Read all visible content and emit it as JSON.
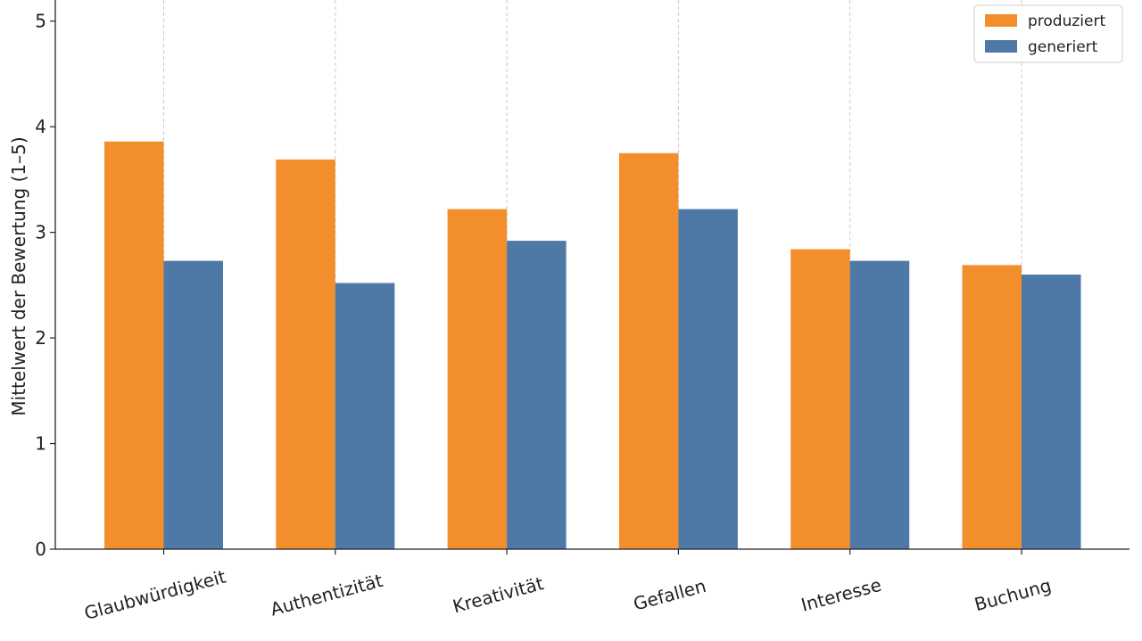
{
  "chart_data": {
    "type": "bar",
    "title": "",
    "xlabel": "",
    "ylabel": "Mittelwert der Bewertung (1–5)",
    "ylim": [
      0,
      5.2
    ],
    "yticks": [
      0,
      1,
      2,
      3,
      4,
      5
    ],
    "grid": "vertical-dashed",
    "legend_position": "top-right",
    "categories": [
      "Glaubwürdigkeit",
      "Authentizität",
      "Kreativität",
      "Gefallen",
      "Interesse",
      "Buchung"
    ],
    "series": [
      {
        "name": "produziert",
        "color": "#f28e2b",
        "values": [
          3.86,
          3.69,
          3.22,
          3.75,
          2.84,
          2.69
        ]
      },
      {
        "name": "generiert",
        "color": "#4e79a7",
        "values": [
          2.73,
          2.52,
          2.92,
          3.22,
          2.73,
          2.6
        ]
      }
    ]
  }
}
